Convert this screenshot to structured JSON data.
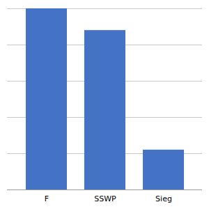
{
  "chart_data": {
    "type": "bar",
    "categories": [
      "F",
      "SSWP",
      "Sieg"
    ],
    "values": [
      100,
      88,
      22
    ],
    "color": "#4472C4",
    "ylim": [
      0,
      100
    ],
    "yticks": [
      0,
      20,
      40,
      60,
      80,
      100
    ],
    "grid": true,
    "tick_labels": "x"
  }
}
